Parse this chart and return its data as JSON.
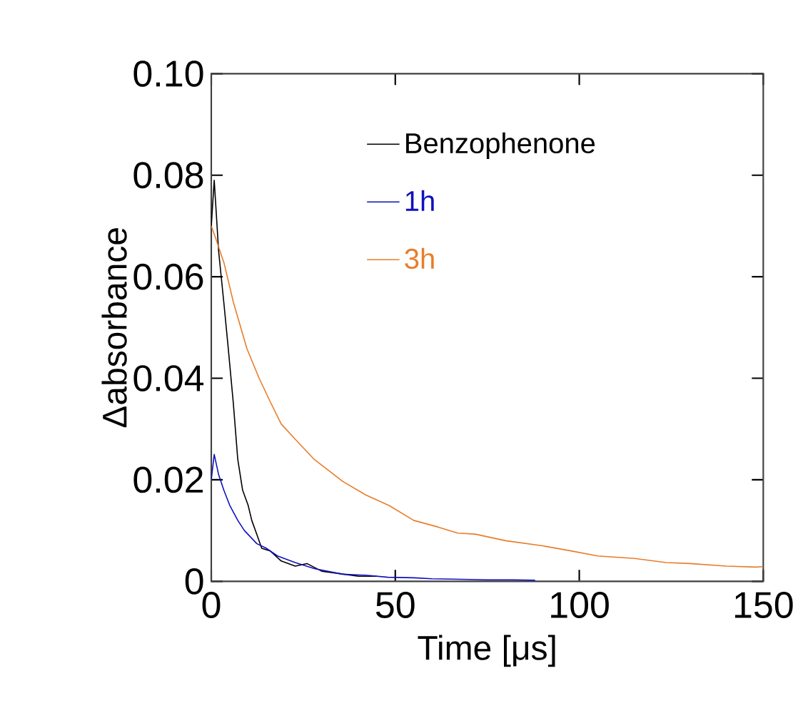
{
  "chart_data": {
    "type": "line",
    "xlabel": "Time [μs]",
    "ylabel": "Δabsorbance",
    "xlim": [
      0,
      150
    ],
    "ylim": [
      0,
      0.1
    ],
    "xticks": [
      0,
      50,
      100,
      150
    ],
    "yticks": [
      0,
      0.02,
      0.04,
      0.06,
      0.08,
      {
        "value": 0.1,
        "label": "0.10"
      }
    ],
    "legend": "top right",
    "grid": false,
    "marker": "none",
    "line_style": "solid",
    "series": [
      {
        "name": "Benzophenone",
        "color": "#000000",
        "x": [
          0,
          0.8,
          2,
          3.4,
          4.6,
          6,
          7.2,
          8.5,
          10,
          11,
          12.5,
          13.7,
          16,
          19,
          22.8,
          26,
          30,
          35,
          40,
          45
        ],
        "values": [
          0.07,
          0.079,
          0.065,
          0.055,
          0.046,
          0.035,
          0.024,
          0.018,
          0.015,
          0.012,
          0.009,
          0.0065,
          0.006,
          0.004,
          0.003,
          0.0035,
          0.002,
          0.0015,
          0.001,
          0.001
        ]
      },
      {
        "name": "1h",
        "color": "#1010c0",
        "x": [
          0,
          0.8,
          2,
          3.4,
          5,
          7.2,
          9,
          12.4,
          15,
          18,
          22.8,
          28,
          35.7,
          42,
          48,
          55,
          60,
          68,
          75,
          82,
          88
        ],
        "values": [
          0.02,
          0.025,
          0.021,
          0.018,
          0.015,
          0.012,
          0.01,
          0.0074,
          0.0065,
          0.005,
          0.0037,
          0.0025,
          0.0014,
          0.0012,
          0.0008,
          0.0007,
          0.0005,
          0.0004,
          0.0003,
          0.0003,
          0.0002
        ]
      },
      {
        "name": "3h",
        "color": "#e87d2a",
        "x": [
          0,
          1,
          3.5,
          6,
          9.7,
          13,
          16,
          19,
          22.8,
          28,
          35.7,
          42,
          48.4,
          55,
          61.6,
          67,
          71.7,
          80,
          90,
          97.7,
          105,
          115,
          123.6,
          130,
          140,
          148,
          150
        ],
        "values": [
          0.07,
          0.068,
          0.0626,
          0.055,
          0.0458,
          0.04,
          0.0354,
          0.031,
          0.028,
          0.024,
          0.0197,
          0.017,
          0.0149,
          0.012,
          0.0107,
          0.0095,
          0.0093,
          0.008,
          0.007,
          0.006,
          0.005,
          0.0045,
          0.0037,
          0.0035,
          0.003,
          0.0028,
          0.0029
        ]
      }
    ]
  }
}
